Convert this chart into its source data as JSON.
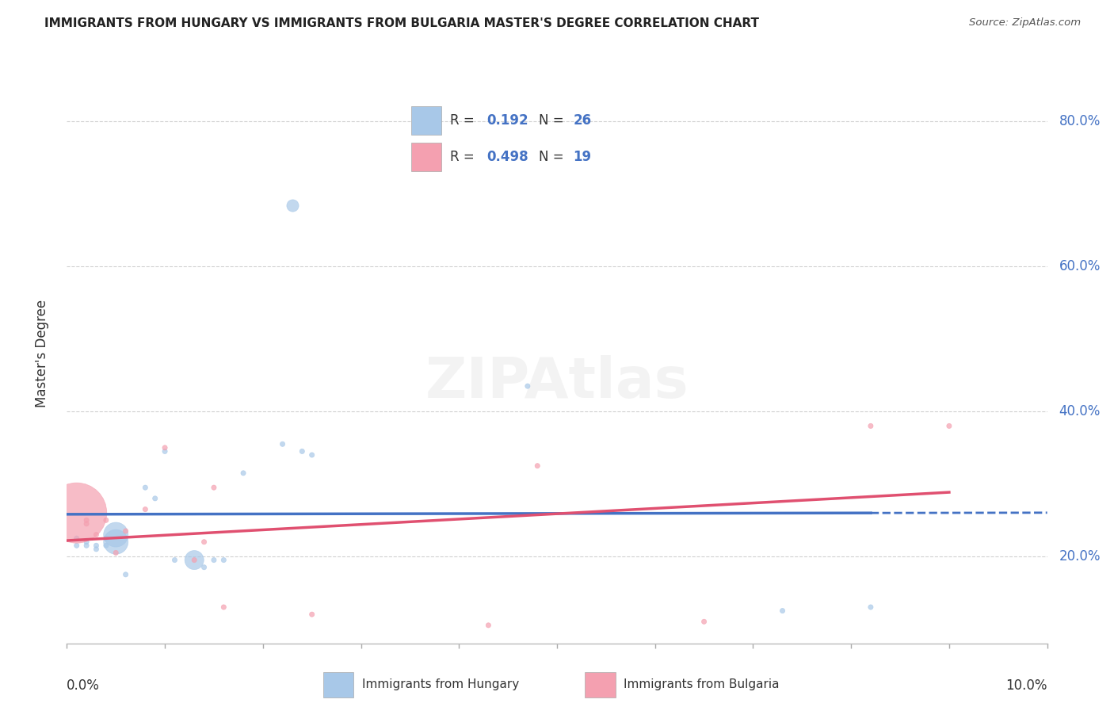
{
  "title": "IMMIGRANTS FROM HUNGARY VS IMMIGRANTS FROM BULGARIA MASTER'S DEGREE CORRELATION CHART",
  "source": "Source: ZipAtlas.com",
  "ylabel": "Master's Degree",
  "ytick_labels": [
    "20.0%",
    "40.0%",
    "60.0%",
    "80.0%"
  ],
  "ytick_values": [
    0.2,
    0.4,
    0.6,
    0.8
  ],
  "xlim": [
    0.0,
    0.1
  ],
  "ylim": [
    0.08,
    0.88
  ],
  "hungary_color": "#a8c8e8",
  "hungary_line_color": "#4472c4",
  "bulgaria_color": "#f4a0b0",
  "bulgaria_line_color": "#e05070",
  "hungary_R": 0.192,
  "bulgaria_R": 0.498,
  "hungary_N": 26,
  "bulgaria_N": 19,
  "hungary_x": [
    0.001,
    0.001,
    0.002,
    0.002,
    0.003,
    0.003,
    0.004,
    0.004,
    0.005,
    0.005,
    0.006,
    0.008,
    0.009,
    0.01,
    0.011,
    0.013,
    0.014,
    0.015,
    0.016,
    0.018,
    0.022,
    0.024,
    0.025,
    0.047,
    0.073,
    0.082
  ],
  "hungary_y": [
    0.215,
    0.225,
    0.215,
    0.22,
    0.215,
    0.21,
    0.225,
    0.215,
    0.23,
    0.22,
    0.175,
    0.295,
    0.28,
    0.345,
    0.195,
    0.195,
    0.185,
    0.195,
    0.195,
    0.315,
    0.355,
    0.345,
    0.34,
    0.435,
    0.125,
    0.13
  ],
  "hungary_sizes": [
    20,
    20,
    20,
    20,
    20,
    20,
    20,
    20,
    500,
    500,
    20,
    20,
    20,
    20,
    20,
    300,
    20,
    20,
    20,
    20,
    20,
    20,
    20,
    20,
    20,
    20
  ],
  "hungary_special_x": [
    0.023
  ],
  "hungary_special_y": [
    0.685
  ],
  "hungary_special_sizes": [
    120
  ],
  "bulgaria_x": [
    0.001,
    0.002,
    0.002,
    0.003,
    0.004,
    0.005,
    0.006,
    0.008,
    0.01,
    0.013,
    0.014,
    0.015,
    0.016,
    0.025,
    0.043,
    0.048,
    0.065,
    0.082,
    0.09
  ],
  "bulgaria_y": [
    0.26,
    0.25,
    0.245,
    0.23,
    0.25,
    0.205,
    0.235,
    0.265,
    0.35,
    0.195,
    0.22,
    0.295,
    0.13,
    0.12,
    0.105,
    0.325,
    0.11,
    0.38,
    0.38
  ],
  "bulgaria_sizes": [
    3000,
    20,
    20,
    20,
    20,
    20,
    20,
    20,
    20,
    20,
    20,
    20,
    20,
    20,
    20,
    20,
    20,
    20,
    20
  ],
  "grid_color": "#d0d0d0",
  "background_color": "#ffffff"
}
